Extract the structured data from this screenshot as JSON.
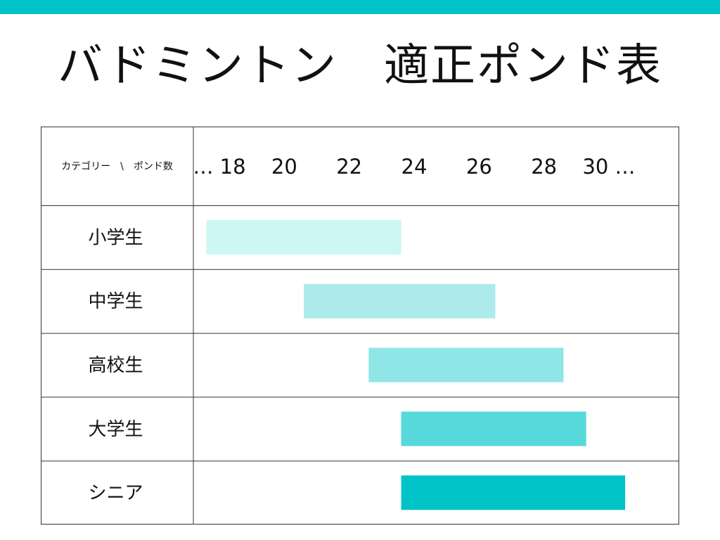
{
  "colors": {
    "top_bar": "#00C3C8",
    "grid": "#333333",
    "bars": [
      "#CCF7F2",
      "#ADEAEA",
      "#8FE6E6",
      "#57D9DC",
      "#00C3C8"
    ]
  },
  "title": "バドミントン　適正ポンド表",
  "chart_data": {
    "type": "bar",
    "orientation": "horizontal",
    "style": "range",
    "corner_header": "カテゴリー　\\　ポンド数",
    "tick_labels": [
      "… 18",
      "20",
      "22",
      "24",
      "26",
      "28",
      "30 …"
    ],
    "ticks": [
      18,
      20,
      22,
      24,
      26,
      28,
      30
    ],
    "categories": [
      "小学生",
      "中学生",
      "高校生",
      "大学生",
      "シニア"
    ],
    "ranges": [
      [
        17.6,
        23.6
      ],
      [
        20.6,
        26.5
      ],
      [
        22.6,
        28.6
      ],
      [
        23.6,
        29.3
      ],
      [
        23.6,
        30.5
      ]
    ],
    "grid": true
  }
}
